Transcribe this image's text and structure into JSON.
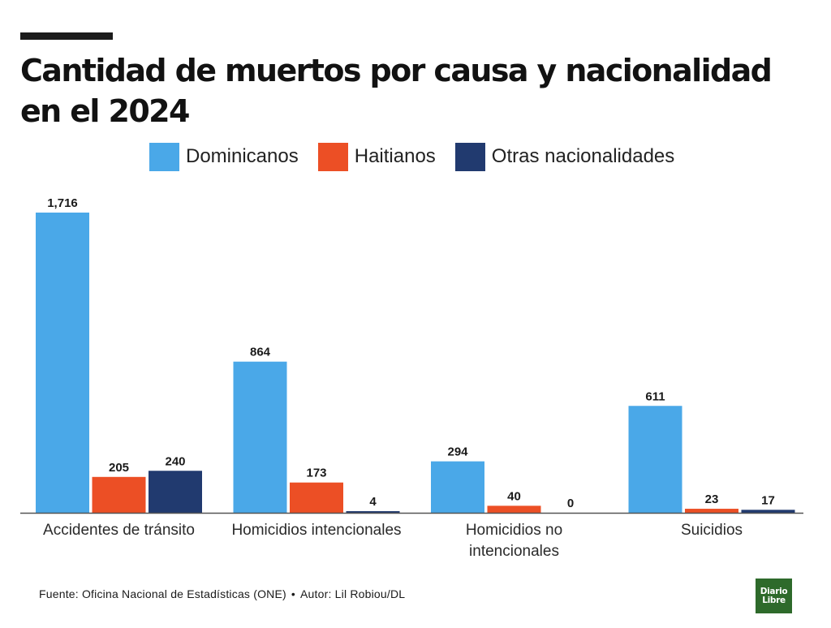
{
  "header": {
    "title": "Cantidad de muertos por causa y nacionalidad en el 2024"
  },
  "footer": {
    "source": "Fuente: Oficina Nacional de Estadísticas (ONE)",
    "separator": "•",
    "author": "Autor: Lil Robiou/DL"
  },
  "logo": {
    "line1": "Diario",
    "line2": "Libre"
  },
  "colors": {
    "dominicanos": "#4aa8e8",
    "haitianos": "#ec4f25",
    "otras": "#213a6f",
    "axis": "#555555",
    "logo_bg": "#2e6a2b"
  },
  "chart_data": {
    "type": "bar",
    "title": "Cantidad de muertos por causa y nacionalidad en el 2024",
    "xlabel": "",
    "ylabel": "",
    "ylim": [
      0,
      1716
    ],
    "grid": false,
    "legend_position": "top",
    "categories": [
      "Accidentes de tránsito",
      "Homicidios intencionales",
      "Homicidios no intencionales",
      "Suicidios"
    ],
    "series": [
      {
        "name": "Dominicanos",
        "color": "#4aa8e8",
        "values": [
          1716,
          864,
          294,
          611
        ],
        "labels": [
          "1,716",
          "864",
          "294",
          "611"
        ]
      },
      {
        "name": "Haitianos",
        "color": "#ec4f25",
        "values": [
          205,
          173,
          40,
          23
        ],
        "labels": [
          "205",
          "173",
          "40",
          "23"
        ]
      },
      {
        "name": "Otras nacionalidades",
        "color": "#213a6f",
        "values": [
          240,
          4,
          0,
          17
        ],
        "labels": [
          "240",
          "4",
          "0",
          "17"
        ]
      }
    ]
  }
}
